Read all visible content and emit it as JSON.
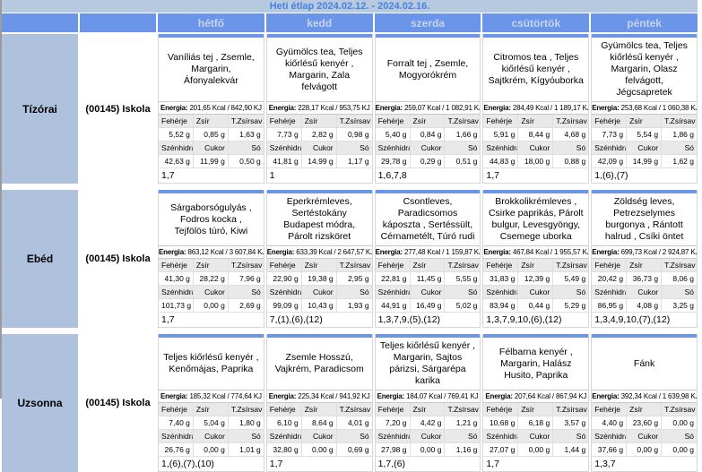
{
  "title": "Heti étlap 2024.02.12. - 2024.02.16.",
  "header": {
    "days": [
      "hétfő",
      "kedd",
      "szerda",
      "csütörtök",
      "péntek"
    ]
  },
  "labels": {
    "energia": "Energia:",
    "protein": "Fehérje",
    "fat": "Zsír",
    "transfat": "T.Zsírsav",
    "carbs": "Szénhidrát",
    "sugar": "Cukor",
    "salt": "Só"
  },
  "colors": {
    "accent_blue": "#6b95e8",
    "title_bar_bg": "#b7c9de",
    "title_text": "#4a80e0",
    "row_label_bg": "#aec2de",
    "stat_label_bg": "#e9e9e9"
  },
  "meals": [
    {
      "name": "Tízórai",
      "location": "(00145) Iskola",
      "cells": [
        {
          "food": "Vaníliás tej , Zsemle, Margarin, Áfonyalekvár",
          "energia": "201,65 Kcal / 842,90 KJ",
          "protein": "5,52 g",
          "fat": "0,85 g",
          "transfat": "1,63 g",
          "carbs": "42,63 g",
          "sugar": "11,99 g",
          "salt": "0,50 g",
          "allergens": "1,7"
        },
        {
          "food": "Gyümölcs tea, Teljes kiőrlésű kenyér , Margarin, Zala felvágott",
          "energia": "228,17 Kcal / 953,75 KJ",
          "protein": "7,73 g",
          "fat": "2,82 g",
          "transfat": "0,98 g",
          "carbs": "41,81 g",
          "sugar": "14,99 g",
          "salt": "1,17 g",
          "allergens": "1"
        },
        {
          "food": "Forralt tej , Zsemle, Mogyorókrém",
          "energia": "259,07 Kcal / 1 082,91 KJ",
          "protein": "5,40 g",
          "fat": "0,84 g",
          "transfat": "1,66 g",
          "carbs": "29,78 g",
          "sugar": "0,29 g",
          "salt": "0,51 g",
          "allergens": "1,6,7,8"
        },
        {
          "food": "Citromos tea , Teljes kiőrlésű kenyér , Sajtkrém, Kígyóuborka",
          "energia": "284,49 Kcal / 1 189,17 KJ",
          "protein": "5,91 g",
          "fat": "8,44 g",
          "transfat": "4,68 g",
          "carbs": "44,83 g",
          "sugar": "18,00 g",
          "salt": "0,88 g",
          "allergens": "1,7"
        },
        {
          "food": "Gyümölcs tea, Teljes kiőrlésű kenyér , Margarin, Olasz felvágott, Jégcsapretek",
          "energia": "253,68 Kcal / 1 060,38 KJ",
          "protein": "7,73 g",
          "fat": "5,54 g",
          "transfat": "1,86 g",
          "carbs": "42,09 g",
          "sugar": "14,99 g",
          "salt": "1,62 g",
          "allergens": "1,(6),(7)"
        }
      ]
    },
    {
      "name": "Ebéd",
      "location": "(00145) Iskola",
      "cells": [
        {
          "food": "Sárgaborsógulyás , Fodros kocka , Tejfölös túró, Kiwi",
          "energia": "863,12 Kcal / 3 607,84 KJ",
          "protein": "41,30 g",
          "fat": "28,22 g",
          "transfat": "7,96 g",
          "carbs": "101,73 g",
          "sugar": "0,00 g",
          "salt": "2,69 g",
          "allergens": "1,7"
        },
        {
          "food": "Eperkrémleves, Sertéstokány Budapest módra, Párolt rizsköret",
          "energia": "633,39 Kcal / 2 647,57 KJ",
          "protein": "22,90 g",
          "fat": "19,38 g",
          "transfat": "2,95 g",
          "carbs": "99,09 g",
          "sugar": "10,43 g",
          "salt": "1,93 g",
          "allergens": "7,(1),(6),(12)"
        },
        {
          "food": "Csontleves, Paradicsomos káposzta , Sertéssült, Cérnametélt, Túró rudi",
          "energia": "277,48 Kcal / 1 159,87 KJ",
          "protein": "22,81 g",
          "fat": "11,45 g",
          "transfat": "5,55 g",
          "carbs": "44,91 g",
          "sugar": "16,49 g",
          "salt": "5,02 g",
          "allergens": "1,3,7,9,(5),(12)"
        },
        {
          "food": "Brokkolikrémleves , Csirke paprikás, Párolt bulgur, Levesgyöngy, Csemege uborka",
          "energia": "467,84 Kcal / 1 955,57 KJ",
          "protein": "31,83 g",
          "fat": "12,39 g",
          "transfat": "5,49 g",
          "carbs": "83,94 g",
          "sugar": "0,44 g",
          "salt": "5,29 g",
          "allergens": "1,3,7,9,10,(6),(12)"
        },
        {
          "food": "Zöldség leves, Petrezselymes burgonya , Rántott halrud , Csíki öntet",
          "energia": "699,73 Kcal / 2 924,87 KJ",
          "protein": "20,42 g",
          "fat": "36,73 g",
          "transfat": "8,06 g",
          "carbs": "86,95 g",
          "sugar": "4,08 g",
          "salt": "3,25 g",
          "allergens": "1,3,4,9,10,(7),(12)"
        }
      ]
    },
    {
      "name": "Uzsonna",
      "location": "(00145) Iskola",
      "cells": [
        {
          "food": "Teljes kiőrlésű kenyér , Kenőmájas, Paprika",
          "energia": "185,32 Kcal / 774,64 KJ",
          "protein": "7,40 g",
          "fat": "5,04 g",
          "transfat": "1,80 g",
          "carbs": "26,76 g",
          "sugar": "0,00 g",
          "salt": "1,01 g",
          "allergens": "1,(6),(7),(10)"
        },
        {
          "food": "Zsemle Hosszú, Vajkrém, Paradicsom",
          "energia": "225,34 Kcal / 941,92 KJ",
          "protein": "6,10 g",
          "fat": "8,64 g",
          "transfat": "4,01 g",
          "carbs": "32,80 g",
          "sugar": "0,00 g",
          "salt": "0,69 g",
          "allergens": "1,7"
        },
        {
          "food": "Teljes kiőrlésű kenyér , Margarin, Sajtos párizsi, Sárgarépa karika",
          "energia": "184,07 Kcal / 769,41 KJ",
          "protein": "7,20 g",
          "fat": "4,42 g",
          "transfat": "1,21 g",
          "carbs": "27,98 g",
          "sugar": "0,00 g",
          "salt": "1,16 g",
          "allergens": "1,7,(6)"
        },
        {
          "food": "Félbarna kenyér , Margarin, Halász Husito, Paprika",
          "energia": "207,64 Kcal / 867,94 KJ",
          "protein": "10,68 g",
          "fat": "6,18 g",
          "transfat": "3,57 g",
          "carbs": "27,07 g",
          "sugar": "0,00 g",
          "salt": "1,44 g",
          "allergens": "1,7"
        },
        {
          "food": "Fánk",
          "energia": "392,34 Kcal / 1 639,98 KJ",
          "protein": "4,40 g",
          "fat": "23,60 g",
          "transfat": "0,00 g",
          "carbs": "37,66 g",
          "sugar": "0,00 g",
          "salt": "0,00 g",
          "allergens": "1,3,7"
        }
      ]
    }
  ]
}
